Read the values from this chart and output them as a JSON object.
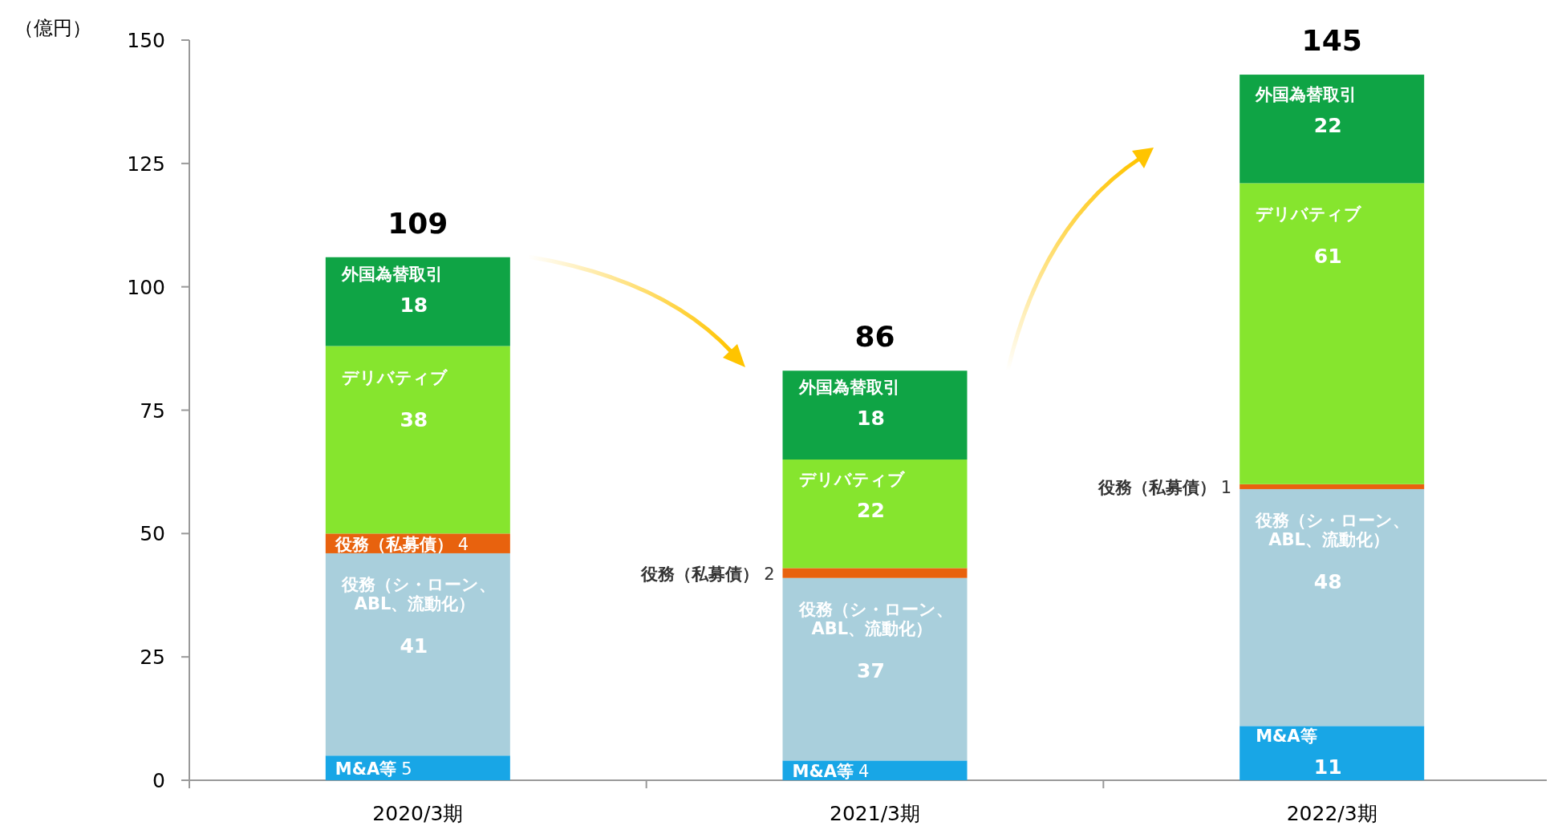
{
  "chart_data": {
    "type": "bar",
    "stacked": true,
    "ylabel": "（億円）",
    "categories": [
      "2020/3期",
      "2021/3期",
      "2022/3期"
    ],
    "series": [
      {
        "name": "M&A等",
        "color": "#18a6e6",
        "values": [
          5,
          4,
          11
        ]
      },
      {
        "name": "役務（シ・ローン、ABL、流動化）",
        "color": "#a9cfdc",
        "values": [
          41,
          37,
          48
        ]
      },
      {
        "name": "役務（私募債）",
        "color": "#e8620e",
        "values": [
          4,
          2,
          1
        ]
      },
      {
        "name": "デリバティブ",
        "color": "#86e52e",
        "values": [
          38,
          22,
          61
        ]
      },
      {
        "name": "外国為替取引",
        "color": "#0fa445",
        "values": [
          18,
          18,
          22
        ]
      }
    ],
    "ylim": [
      0,
      150
    ],
    "yticks": [
      0,
      25,
      50,
      75,
      100,
      125,
      150
    ],
    "data_labels": true,
    "totals": [
      "109",
      "86",
      "145"
    ],
    "legend": false,
    "grid": false
  }
}
